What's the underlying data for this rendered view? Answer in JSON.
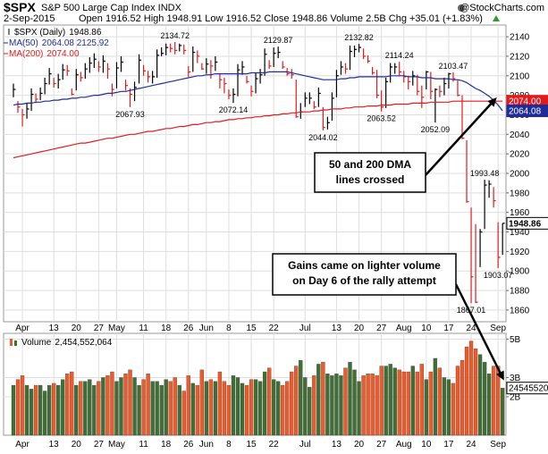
{
  "header": {
    "symbol": "$SPX",
    "name": "S&P 500 Large Cap Index INDX",
    "source": "@StockCharts.com",
    "date": "2-Sep-2015",
    "quote": "Open 1916.52 High 1948.91 Low 1916.52 Close 1948.86 Volume 2.5B Chg +35.01 (+1.83%)"
  },
  "chart_data": [
    {
      "type": "ohlc",
      "categories": [
        null,
        null,
        "Apr",
        null,
        null,
        null,
        null,
        null,
        null,
        "13",
        null,
        null,
        null,
        null,
        "20",
        null,
        null,
        null,
        null,
        "27",
        null,
        null,
        null,
        "May",
        null,
        null,
        null,
        null,
        null,
        "11",
        null,
        null,
        null,
        null,
        "18",
        null,
        null,
        null,
        null,
        "26",
        null,
        null,
        null,
        "Jun",
        null,
        null,
        null,
        null,
        "8",
        null,
        null,
        null,
        null,
        "15",
        null,
        null,
        null,
        null,
        "22",
        null,
        null,
        null,
        null,
        null,
        null,
        "Jul",
        null,
        null,
        null,
        null,
        null,
        null,
        "13",
        null,
        null,
        null,
        null,
        "20",
        null,
        null,
        null,
        null,
        "27",
        null,
        null,
        null,
        null,
        "Aug",
        null,
        null,
        null,
        null,
        "10",
        null,
        null,
        null,
        null,
        "17",
        null,
        null,
        null,
        null,
        "24",
        null,
        null,
        null,
        null,
        null,
        "Sep",
        null
      ],
      "series": [
        {
          "name": "$SPX (Daily)",
          "up_color": "#000000",
          "down_color": "#e31a1c",
          "high": [
            2092,
            2074,
            2066,
            2072,
            2087,
            2082,
            2088,
            2098,
            2108,
            2098,
            2102,
            2112,
            2111,
            2087,
            2107,
            2104,
            2113,
            2119,
            2123,
            2115,
            2121,
            2113,
            2092,
            2114,
            2120,
            2096,
            2087,
            2094,
            2122,
            2111,
            2105,
            2105,
            2127,
            2129,
            2133,
            2133,
            2134.72,
            2133,
            2132,
            2110,
            2130,
            2126,
            2113,
            2118,
            2116,
            2120,
            2102,
            2098,
            2086,
            2087,
            2112,
            2115,
            2100,
            2090,
            2103,
            2107,
            2128,
            2116,
            2129,
            2129.87,
            2115,
            2108,
            2107,
            2096,
            2072,
            2083,
            2083,
            2074,
            2088,
            2068,
            2058,
            2083,
            2106,
            2115,
            2113,
            2131,
            2131,
            2132.82,
            2128,
            2121,
            2109,
            2106,
            2085,
            2098,
            2113,
            2113,
            2114.24,
            2105,
            2100,
            2105,
            2101,
            2090,
            2105,
            2104,
            2087,
            2090,
            2098,
            2103,
            2103.47,
            2096,
            2080,
            2034,
            1965,
            1948,
            1943,
            1993.48,
            1993,
            1986,
            1950,
            1948.91
          ],
          "low": [
            2078,
            2062,
            2048,
            2056,
            2064,
            2072,
            2075,
            2081,
            2091,
            2088,
            2087,
            2096,
            2100,
            2080,
            2085,
            2094,
            2097,
            2103,
            2108,
            2104,
            2103,
            2097,
            2079,
            2087,
            2104,
            2085,
            2067.93,
            2074,
            2092,
            2100,
            2093,
            2092,
            2098,
            2120,
            2121,
            2124,
            2122,
            2125,
            2122,
            2099,
            2104,
            2113,
            2106,
            2102,
            2097,
            2105,
            2087,
            2082,
            2076,
            2072.14,
            2079,
            2101,
            2092,
            2079,
            2082,
            2092,
            2100,
            2107,
            2109,
            2118,
            2107,
            2100,
            2097,
            2057,
            2056,
            2068,
            2071,
            2066,
            2068,
            2044.02,
            2045,
            2054,
            2078,
            2101,
            2102,
            2106,
            2119,
            2124,
            2117,
            2113,
            2101,
            2077,
            2063.52,
            2067,
            2093,
            2102,
            2100,
            2093,
            2086,
            2090,
            2080,
            2067,
            2086,
            2076,
            2052.09,
            2078,
            2080,
            2087,
            2094,
            2079,
            2035,
            1970,
            1867.01,
            1867.08,
            1904,
            1943,
            1975,
            1965,
            1903.07,
            1916.52
          ],
          "close": [
            2086,
            2068,
            2060,
            2066,
            2081,
            2076,
            2082,
            2092,
            2102,
            2092,
            2096,
            2106,
            2105,
            2081,
            2101,
            2098,
            2107,
            2113,
            2117,
            2109,
            2115,
            2107,
            2086,
            2108,
            2114,
            2090,
            2081,
            2088,
            2116,
            2105,
            2099,
            2099,
            2121,
            2123,
            2129,
            2128,
            2126,
            2131,
            2126,
            2104,
            2124,
            2120,
            2107,
            2112,
            2110,
            2114,
            2096,
            2092,
            2080,
            2081,
            2106,
            2109,
            2094,
            2084,
            2097,
            2101,
            2122,
            2110,
            2123,
            2124,
            2109,
            2102,
            2101,
            2058,
            2063,
            2077,
            2077,
            2068,
            2082,
            2047,
            2052,
            2077,
            2100,
            2109,
            2107,
            2125,
            2127,
            2129,
            2120,
            2115,
            2103,
            2080,
            2068,
            2094,
            2109,
            2109,
            2104,
            2099,
            2094,
            2100,
            2084,
            2078,
            2104,
            2084,
            2086,
            2084,
            2092,
            2102,
            2097,
            2080,
            2036,
            1971,
            1894,
            1868,
            1940,
            1988,
            1989,
            1972,
            1914,
            1948.86
          ]
        },
        {
          "name": "MA(50)",
          "legend_value": "2064.08 2125.92",
          "color": "#1f2d9a",
          "values": [
            2070,
            2071,
            2071,
            2072,
            2072,
            2073,
            2073,
            2074,
            2074,
            2075,
            2075,
            2076,
            2076,
            2077,
            2077,
            2078,
            2078,
            2079,
            2080,
            2080,
            2081,
            2082,
            2082,
            2083,
            2084,
            2084,
            2085,
            2086,
            2087,
            2088,
            2089,
            2090,
            2091,
            2092,
            2093,
            2094,
            2095,
            2096,
            2097,
            2098,
            2099,
            2100,
            2100,
            2101,
            2101,
            2102,
            2102,
            2102,
            2102,
            2102,
            2102,
            2102,
            2102,
            2103,
            2103,
            2103,
            2103,
            2104,
            2104,
            2104,
            2104,
            2104,
            2103,
            2102,
            2101,
            2100,
            2099,
            2098,
            2097,
            2096,
            2096,
            2096,
            2096,
            2097,
            2097,
            2098,
            2098,
            2099,
            2099,
            2099,
            2099,
            2099,
            2099,
            2099,
            2100,
            2100,
            2100,
            2100,
            2099,
            2099,
            2099,
            2098,
            2098,
            2098,
            2097,
            2097,
            2097,
            2097,
            2096,
            2096,
            2095,
            2093,
            2090,
            2087,
            2085,
            2082,
            2079,
            2075,
            2070,
            2064.08
          ]
        },
        {
          "name": "MA(200)",
          "legend_value": "2074.00",
          "color": "#e31a1c",
          "values": [
            2016,
            2017,
            2018,
            2019,
            2020,
            2021,
            2022,
            2023,
            2024,
            2025,
            2026,
            2027,
            2028,
            2029,
            2030,
            2031,
            2031,
            2032,
            2033,
            2034,
            2035,
            2036,
            2036,
            2037,
            2038,
            2039,
            2040,
            2040,
            2041,
            2042,
            2043,
            2043,
            2044,
            2045,
            2046,
            2046,
            2047,
            2048,
            2048,
            2049,
            2050,
            2050,
            2051,
            2052,
            2052,
            2053,
            2053,
            2054,
            2055,
            2055,
            2056,
            2056,
            2057,
            2057,
            2058,
            2058,
            2059,
            2059,
            2060,
            2060,
            2061,
            2061,
            2062,
            2062,
            2063,
            2063,
            2063,
            2064,
            2064,
            2065,
            2065,
            2066,
            2066,
            2066,
            2067,
            2067,
            2068,
            2068,
            2068,
            2069,
            2069,
            2069,
            2070,
            2070,
            2070,
            2071,
            2071,
            2071,
            2071,
            2072,
            2072,
            2072,
            2072,
            2073,
            2073,
            2073,
            2073,
            2073,
            2074,
            2074,
            2074,
            2074,
            2074,
            2074,
            2074,
            2074,
            2074,
            2074,
            2074,
            2074
          ]
        }
      ],
      "ylim": [
        1848,
        2152
      ],
      "yticks": [
        1860,
        1880,
        1900,
        1920,
        1940,
        1960,
        1980,
        2000,
        2020,
        2040,
        2060,
        2080,
        2100,
        2120,
        2140
      ],
      "grid": true,
      "annotations": [
        {
          "lines": [
            "50 and 200 DMA",
            "lines crossed"
          ]
        },
        {
          "lines": [
            "Gains came on lighter volume",
            "on Day 6 of the rally attempt"
          ]
        }
      ]
    },
    {
      "type": "bar",
      "name": "Volume",
      "legend_value": "2,454,552,064",
      "up_color": "#3f6f34",
      "down_color": "#f05a28",
      "values": [
        2600000000.0,
        2900000000.0,
        3100000000.0,
        2600000000.0,
        2400000000.0,
        2600000000.0,
        2600000000.0,
        2300000000.0,
        2600000000.0,
        2700000000.0,
        2600000000.0,
        2900000000.0,
        3200000000.0,
        3300000000.0,
        2600000000.0,
        2800000000.0,
        2800000000.0,
        2900000000.0,
        2600000000.0,
        2800000000.0,
        3000000000.0,
        3100000000.0,
        3300000000.0,
        2800000000.0,
        3000000000.0,
        3200000000.0,
        3400000000.0,
        3000000000.0,
        2600000000.0,
        2900000000.0,
        3200000000.0,
        2800000000.0,
        2800000000.0,
        2600000000.0,
        2900000000.0,
        2800000000.0,
        3000000000.0,
        2600000000.0,
        2300000000.0,
        3100000000.0,
        2700000000.0,
        2600000000.0,
        3400000000.0,
        2800000000.0,
        2900000000.0,
        2800000000.0,
        3300000000.0,
        2800000000.0,
        2600000000.0,
        3100000000.0,
        3000000000.0,
        2700000000.0,
        2600000000.0,
        2900000000.0,
        2900000000.0,
        2800000000.0,
        3300000000.0,
        3500000000.0,
        2900000000.0,
        2800000000.0,
        2600000000.0,
        2800000000.0,
        3300000000.0,
        3600000000.0,
        3900000000.0,
        3000000000.0,
        2500000000.0,
        3100000000.0,
        3700000000.0,
        3800000000.0,
        3200000000.0,
        3100000000.0,
        3200000000.0,
        3100000000.0,
        3500000000.0,
        3800000000.0,
        3400000000.0,
        2800000000.0,
        3100000000.0,
        3200000000.0,
        3200000000.0,
        3100000000.0,
        3600000000.0,
        3600000000.0,
        3700000000.0,
        3500000000.0,
        3400000000.0,
        3300000000.0,
        3300000000.0,
        3600000000.0,
        3300000000.0,
        3700000000.0,
        2900000000.0,
        3300000000.0,
        4000000000.0,
        3500000000.0,
        3000000000.0,
        2900000000.0,
        2700000000.0,
        3600000000.0,
        3900000000.0,
        4600000000.0,
        4900000000.0,
        4500000000.0,
        4200000000.0,
        3800000000.0,
        3200000000.0,
        3600000000.0,
        3600000000.0,
        2454552064
      ],
      "ylim": [
        0,
        5300000000.0
      ],
      "yticks": [
        {
          "value": 2000000000.0,
          "label": "2B"
        },
        {
          "value": 3000000000.0,
          "label": "3B"
        },
        {
          "value": 5000000000.0,
          "label": "5B"
        }
      ],
      "grid": true
    }
  ]
}
